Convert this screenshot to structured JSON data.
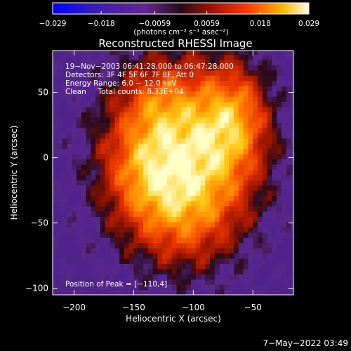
{
  "chart_data": {
    "type": "heatmap",
    "title": "Reconstructed RHESSI Image",
    "xlabel": "Heliocentric X (arcsec)",
    "ylabel": "Heliocentric Y (arcsec)",
    "xlim": [
      -218,
      -16
    ],
    "ylim": [
      -105,
      82
    ],
    "x_ticks": [
      -200,
      -150,
      -100,
      -50
    ],
    "y_ticks": [
      -100,
      -50,
      0,
      50
    ],
    "colorbar": {
      "min": -0.029,
      "max": 0.029,
      "tick_values": [
        -0.029,
        -0.018,
        -0.0059,
        0.0059,
        0.018,
        0.029
      ],
      "tick_labels": [
        "−0.029",
        "−0.018",
        "−0.0059",
        "0.0059",
        "0.018",
        "0.029"
      ],
      "units": "(photons cm⁻² s⁻¹ asec⁻²)"
    },
    "annotations": [
      "19−Nov−2003 06:41:28.000 to 06:47:28.000",
      "Detectors: 3F 4F 5F 6F 7F 8F, Att 0",
      "Energy Range: 6.0 − 12.0 keV",
      "Clean     Total counts: 8.33E+04"
    ],
    "peak_label": "Position of Peak = [−110,4]",
    "peak": {
      "x": -110,
      "y": 4,
      "value": 0.029
    },
    "timestamp": "7−May−2022 03:49"
  },
  "colors": {
    "background": "#000000",
    "axes": "#ffffff"
  }
}
